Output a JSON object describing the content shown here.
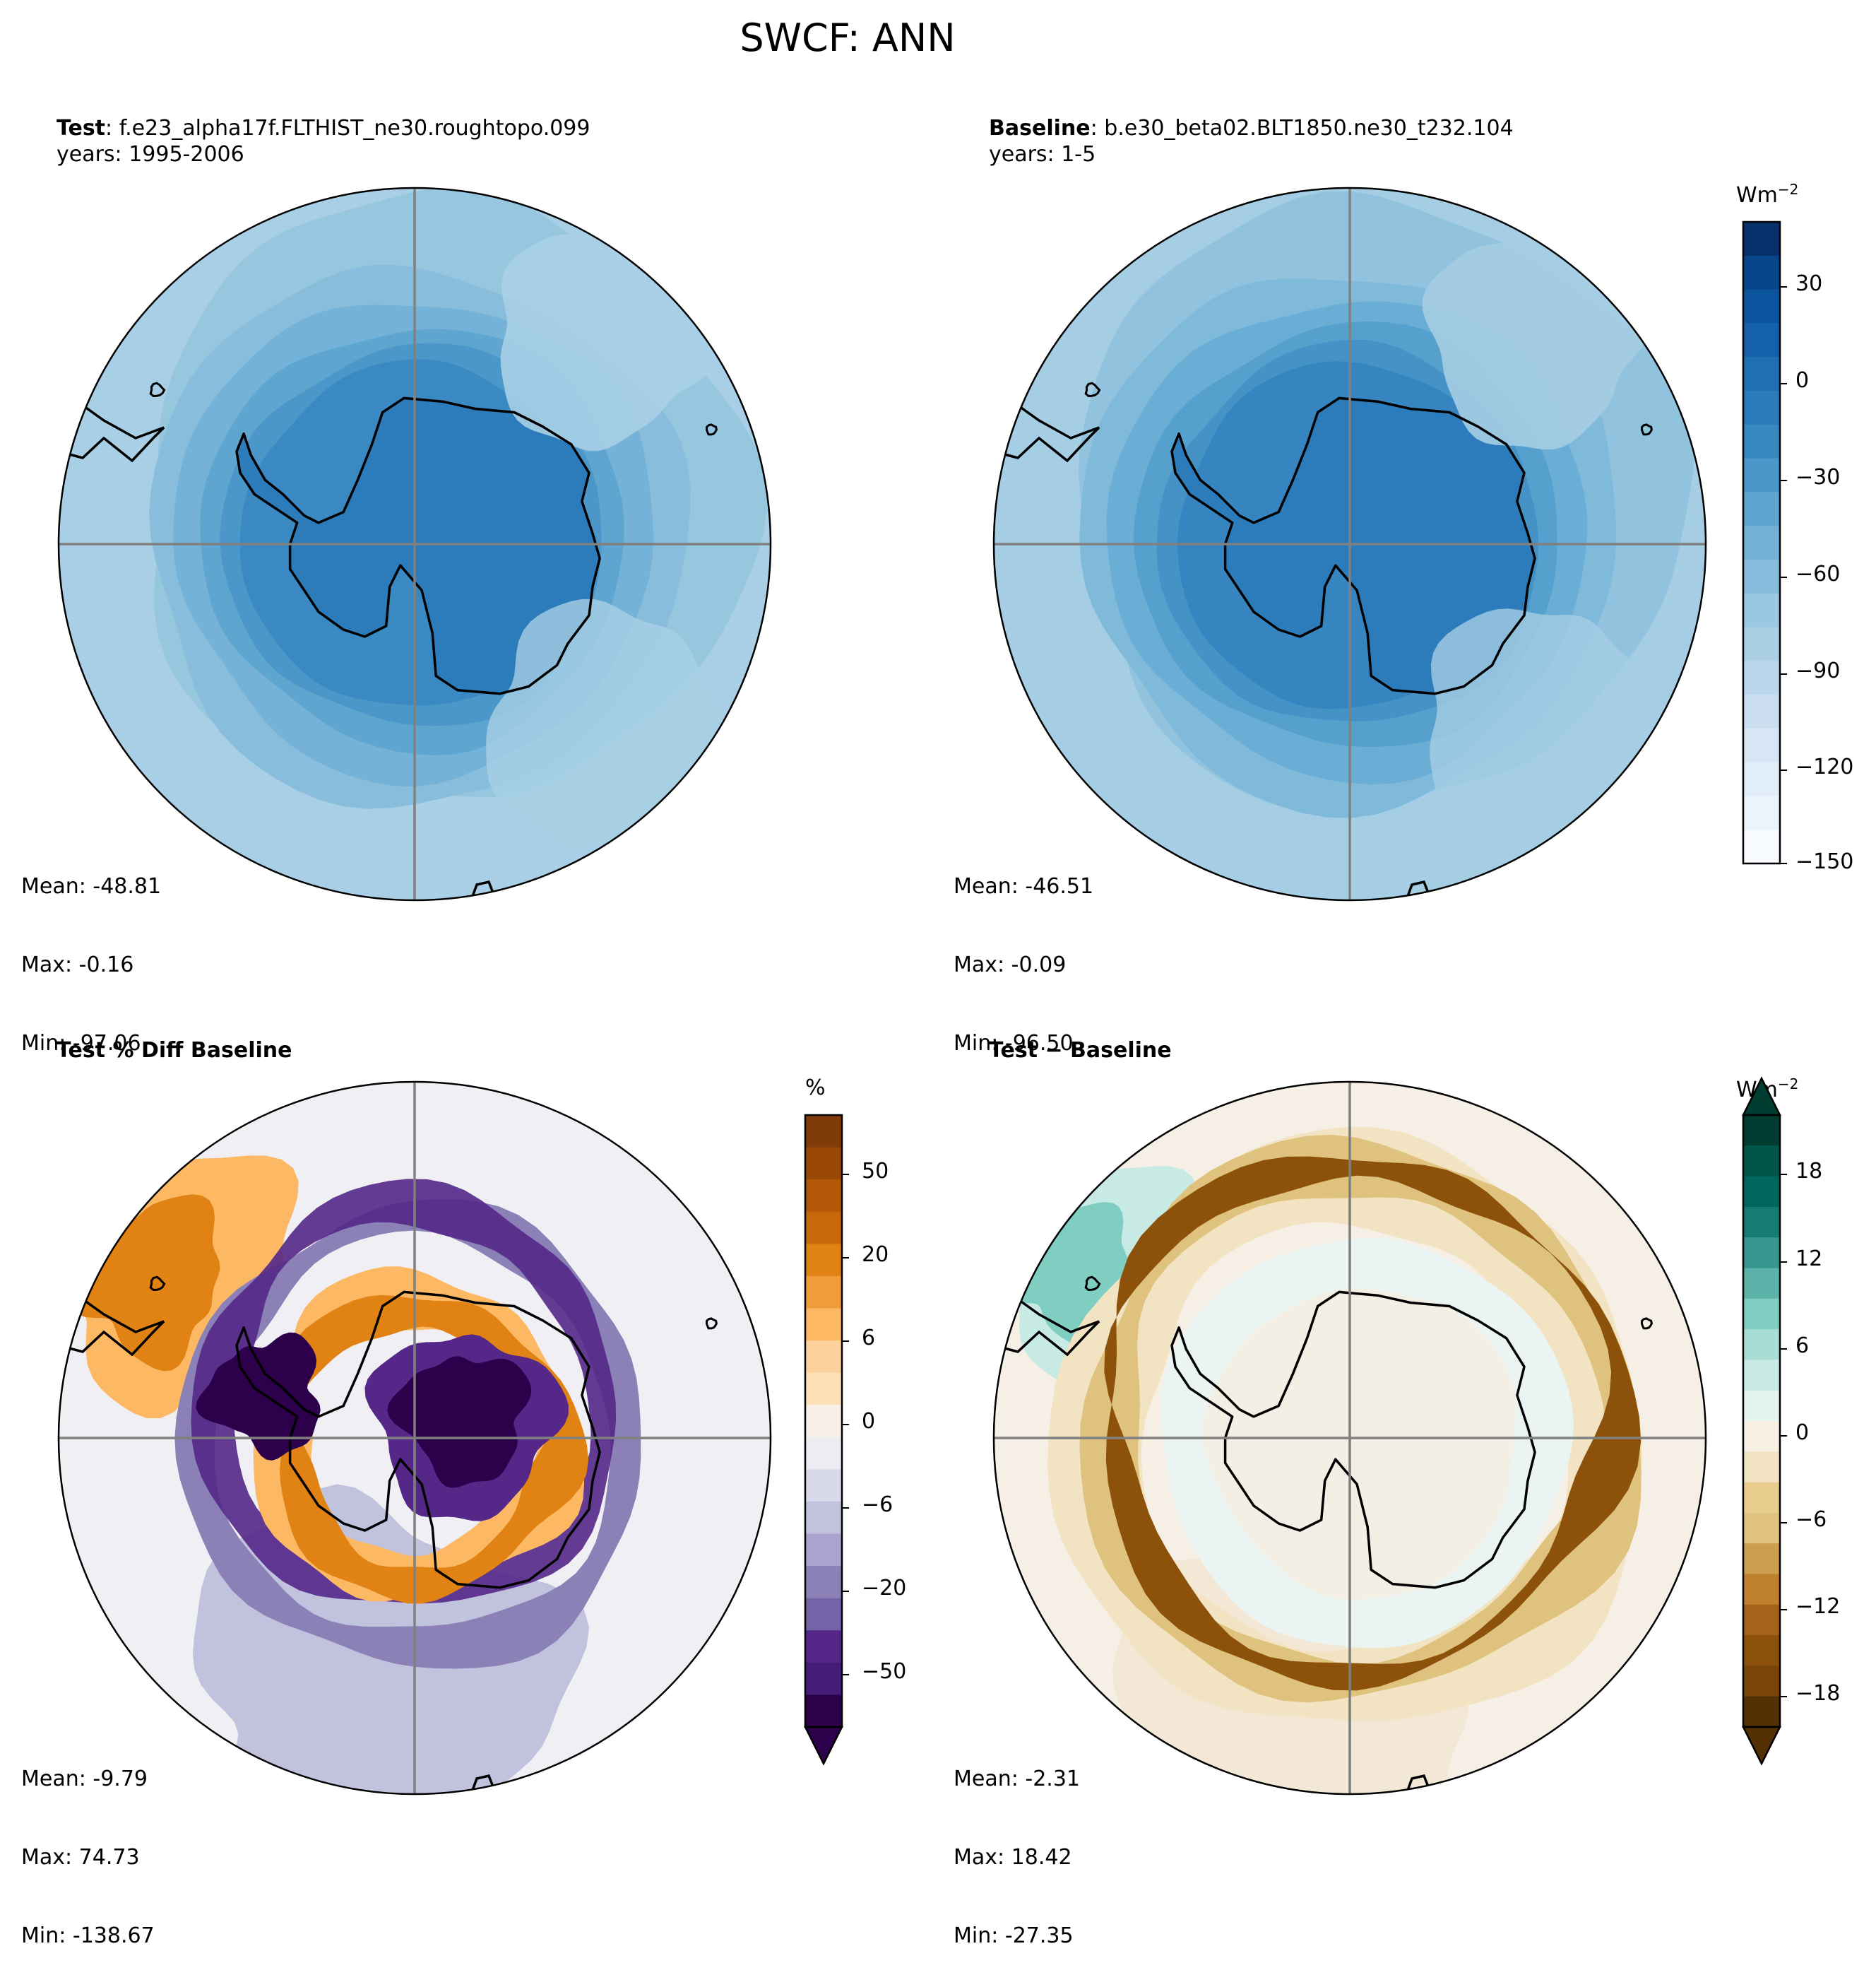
{
  "figure_title": "SWCF: ANN",
  "panels": [
    {
      "id": "test",
      "label": "Test",
      "label_sep": ":",
      "case": "f.e23_alpha17f.FLTHIST_ne30.roughtopo.099",
      "years": "years: 1995-2006",
      "stats": {
        "mean": "Mean: -48.81",
        "max": "Max: -0.16",
        "min": "Min: -97.06"
      }
    },
    {
      "id": "baseline",
      "label": "Baseline",
      "label_sep": ":",
      "case": "b.e30_beta02.BLT1850.ne30_t232.104",
      "years": "years: 1-5",
      "stats": {
        "mean": "Mean: -46.51",
        "max": "Max: -0.09",
        "min": "Min: -96.50"
      }
    },
    {
      "id": "pctdiff",
      "label": "Test % Diff Baseline",
      "stats": {
        "mean": "Mean: -9.79",
        "max": "Max: 74.73",
        "min": "Min: -138.67"
      }
    },
    {
      "id": "diff",
      "label": "Test − Baseline",
      "stats": {
        "mean": "Mean: -2.31",
        "max": "Max: 18.42",
        "min": "Min: -27.35"
      }
    }
  ],
  "colorbars": {
    "main": {
      "unit_base": "Wm",
      "unit_exp": "−2",
      "ticks": [
        "30",
        "0",
        "−30",
        "−60",
        "−90",
        "−120",
        "−150"
      ],
      "colors": [
        "#08306b",
        "#08468c",
        "#0b559f",
        "#1561a9",
        "#206fb5",
        "#2b7bba",
        "#3787c0",
        "#4a98c9",
        "#5ea6d1",
        "#71b1d7",
        "#85bcdc",
        "#9ac8e0",
        "#abd0e6",
        "#bcd7eb",
        "#cadef0",
        "#d6e6f4",
        "#e1edf8",
        "#ebf3fb",
        "#f7fbff"
      ]
    },
    "pct": {
      "unit": "%",
      "ticks": [
        "50",
        "20",
        "6",
        "0",
        "−6",
        "−20",
        "−50"
      ],
      "colors": [
        "#7f3b08",
        "#9a4808",
        "#b35806",
        "#c8680c",
        "#e08214",
        "#ee9d3a",
        "#fdb863",
        "#fdd19b",
        "#fee0b6",
        "#f7f0e8",
        "#ececf2",
        "#d8daeb",
        "#c1c2de",
        "#a9a3cd",
        "#8b81b7",
        "#7564a8",
        "#542788",
        "#471c79",
        "#2d004b"
      ]
    },
    "diff": {
      "unit_base": "Wm",
      "unit_exp": "−2",
      "ticks": [
        "18",
        "12",
        "6",
        "0",
        "−6",
        "−12",
        "−18"
      ],
      "colors": [
        "#003c30",
        "#01564c",
        "#01665e",
        "#167c73",
        "#35978f",
        "#5ab2a8",
        "#80cdc1",
        "#a8ddd3",
        "#c7eae5",
        "#e6f4f1",
        "#f6efe2",
        "#f2e3c3",
        "#e8cd8e",
        "#dfc27d",
        "#cb9d4d",
        "#bf812d",
        "#a56219",
        "#8c510a",
        "#7a4509",
        "#543005"
      ]
    }
  },
  "map_fields": {
    "test": [
      "#2c7bba",
      "#3a89c3",
      "#4b97c9",
      "#5ea5d0",
      "#74b2d8",
      "#88bedc",
      "#97c6df",
      "#a8cfe5"
    ],
    "baseline": [
      "#2c7bba",
      "#3785c0",
      "#4592c7",
      "#56a0ce",
      "#6aaed5",
      "#80badb",
      "#92c3de",
      "#a5cde3"
    ],
    "pctdiff": [
      "#2d004b",
      "#542788",
      "#8b81b7",
      "#d8daeb",
      "#e08214",
      "#fdb863",
      "#8b81b7",
      "#c1c2de",
      "#f0eff4"
    ],
    "diff": [
      "#eaf4f2",
      "#f4efe4",
      "#f2e3c3",
      "#8c510a",
      "#dfc27d",
      "#f2e8d5",
      "#80cdc1",
      "#c7eae5",
      "#f5efe6"
    ]
  }
}
